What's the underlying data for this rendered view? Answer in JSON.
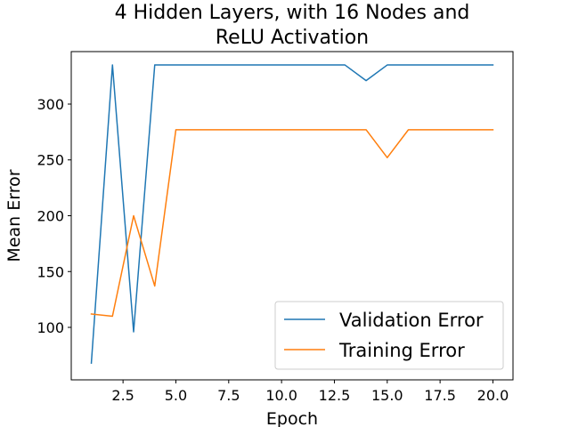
{
  "chart_data": {
    "type": "line",
    "title_lines": [
      "4 Hidden Layers, with 16 Nodes and",
      "ReLU Activation"
    ],
    "xlabel": "Epoch",
    "ylabel": "Mean Error",
    "x": [
      1,
      2,
      3,
      4,
      5,
      6,
      7,
      8,
      9,
      10,
      11,
      12,
      13,
      14,
      15,
      16,
      17,
      18,
      19,
      20
    ],
    "xlim": [
      0.05,
      20.95
    ],
    "ylim": [
      53,
      347
    ],
    "xticks": [
      2.5,
      5.0,
      7.5,
      10.0,
      12.5,
      15.0,
      17.5,
      20.0
    ],
    "xtick_labels": [
      "2.5",
      "5.0",
      "7.5",
      "10.0",
      "12.5",
      "15.0",
      "17.5",
      "20.0"
    ],
    "yticks": [
      100,
      150,
      200,
      250,
      300
    ],
    "ytick_labels": [
      "100",
      "150",
      "200",
      "250",
      "300"
    ],
    "grid": false,
    "legend_position": "lower-right",
    "series": [
      {
        "name": "Validation Error",
        "color": "#1f77b4",
        "values": [
          68,
          335,
          96,
          335,
          335,
          335,
          335,
          335,
          335,
          335,
          335,
          335,
          335,
          321,
          335,
          335,
          335,
          335,
          335,
          335
        ]
      },
      {
        "name": "Training Error",
        "color": "#ff7f0e",
        "values": [
          112,
          110,
          200,
          137,
          277,
          277,
          277,
          277,
          277,
          277,
          277,
          277,
          277,
          277,
          252,
          277,
          277,
          277,
          277,
          277
        ]
      }
    ]
  }
}
